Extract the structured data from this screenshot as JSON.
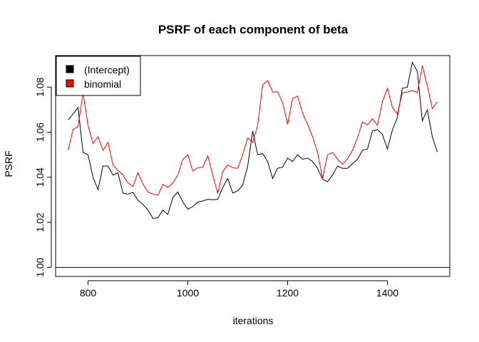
{
  "chart_data": {
    "type": "line",
    "title": "PSRF of each component of beta",
    "xlabel": "iterations",
    "ylabel": "PSRF",
    "xlim": [
      735,
      1525
    ],
    "ylim": [
      0.996,
      1.094
    ],
    "xticks": [
      800,
      1000,
      1200,
      1400
    ],
    "yticks": [
      1.0,
      1.02,
      1.04,
      1.06,
      1.08
    ],
    "xtick_labels": [
      "800",
      "1000",
      "1200",
      "1400"
    ],
    "ytick_labels": [
      "1.00",
      "1.02",
      "1.04",
      "1.06",
      "1.08"
    ],
    "hline": 1.0,
    "legend_position": "top-left",
    "grid": false,
    "x": [
      760,
      770,
      780,
      790,
      800,
      810,
      820,
      830,
      840,
      850,
      860,
      870,
      880,
      890,
      900,
      910,
      920,
      930,
      940,
      950,
      960,
      970,
      980,
      990,
      1000,
      1010,
      1020,
      1030,
      1040,
      1050,
      1060,
      1070,
      1080,
      1090,
      1100,
      1110,
      1120,
      1130,
      1140,
      1150,
      1160,
      1170,
      1180,
      1190,
      1200,
      1210,
      1220,
      1230,
      1240,
      1250,
      1260,
      1270,
      1280,
      1290,
      1300,
      1310,
      1320,
      1330,
      1340,
      1350,
      1360,
      1370,
      1380,
      1390,
      1400,
      1410,
      1420,
      1430,
      1440,
      1450,
      1460,
      1470,
      1480,
      1490,
      1500
    ],
    "series": [
      {
        "name": "(Intercept)",
        "color": "#000000",
        "values": [
          1.0655,
          1.068,
          1.071,
          1.051,
          1.05,
          1.04,
          1.0345,
          1.045,
          1.045,
          1.041,
          1.042,
          1.033,
          1.0325,
          1.0333,
          1.0298,
          1.028,
          1.0255,
          1.0218,
          1.022,
          1.0255,
          1.0235,
          1.031,
          1.0335,
          1.029,
          1.0258,
          1.027,
          1.029,
          1.0295,
          1.0302,
          1.03,
          1.0302,
          1.0355,
          1.0395,
          1.033,
          1.034,
          1.0365,
          1.045,
          1.0605,
          1.05,
          1.0505,
          1.047,
          1.0395,
          1.044,
          1.0445,
          1.0485,
          1.047,
          1.05,
          1.048,
          1.0485,
          1.047,
          1.044,
          1.0392,
          1.038,
          1.041,
          1.045,
          1.044,
          1.044,
          1.046,
          1.048,
          1.052,
          1.0525,
          1.0605,
          1.0612,
          1.059,
          1.0525,
          1.061,
          1.0665,
          1.0795,
          1.08,
          1.091,
          1.087,
          1.065,
          1.07,
          1.058,
          1.0512
        ]
      },
      {
        "name": "binomial",
        "color": "#ff0000",
        "values": [
          1.052,
          1.0612,
          1.0625,
          1.0775,
          1.063,
          1.055,
          1.058,
          1.052,
          1.0555,
          1.0455,
          1.043,
          1.041,
          1.0375,
          1.036,
          1.042,
          1.037,
          1.0335,
          1.0325,
          1.032,
          1.0368,
          1.0355,
          1.0375,
          1.041,
          1.048,
          1.05,
          1.0428,
          1.0442,
          1.0445,
          1.0495,
          1.041,
          1.0328,
          1.0425,
          1.0455,
          1.0442,
          1.044,
          1.05,
          1.0575,
          1.0555,
          1.063,
          1.081,
          1.083,
          1.0778,
          1.078,
          1.073,
          1.0635,
          1.075,
          1.076,
          1.0685,
          1.0635,
          1.058,
          1.051,
          1.0395,
          1.05,
          1.051,
          1.048,
          1.0457,
          1.0482,
          1.052,
          1.0575,
          1.0645,
          1.0632,
          1.066,
          1.063,
          1.0735,
          1.0795,
          1.071,
          1.068,
          1.0775,
          1.0778,
          1.0785,
          1.0775,
          1.0895,
          1.0805,
          1.0705,
          1.0735
        ]
      }
    ]
  }
}
